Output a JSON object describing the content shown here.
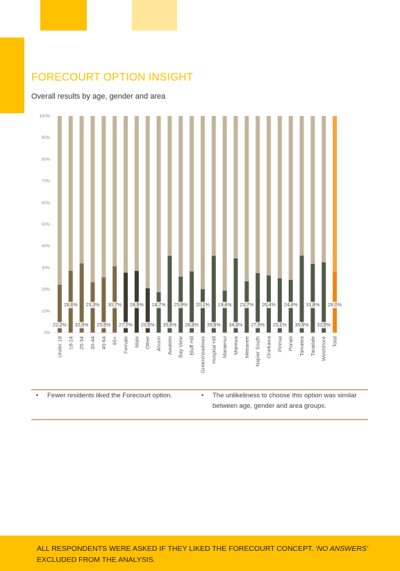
{
  "header": {
    "title": "FORECOURT OPTION INSIGHT",
    "subtitle": "Overall results by age, gender and area"
  },
  "colors": {
    "brand_yellow": "#FFC000",
    "light_yellow": "#FFE699",
    "no_segment": "#C3B59C",
    "age_yes": "#7F6A46",
    "gender_yes": "#3E3A2C",
    "area_yes": "#4F5B46",
    "total_no": "#F6A640",
    "total_yes": "#EE8516"
  },
  "chart_data": {
    "type": "bar",
    "stacked": true,
    "percent": true,
    "ylim": [
      0,
      100
    ],
    "yticks": [
      "0%",
      "10%",
      "20%",
      "30%",
      "40%",
      "50%",
      "60%",
      "70%",
      "80%",
      "90%",
      "100%"
    ],
    "categories": [
      "Under 18",
      "18-24",
      "25-34",
      "35-44",
      "45-64",
      "65+",
      "Female",
      "Male",
      "Other",
      "Ahuriri",
      "Awatoto",
      "Bay View",
      "Bluff Hill",
      "Greenmeadows",
      "Hospital Hill",
      "Maraenui",
      "Marewa",
      "Meeanee",
      "Napier South",
      "Onekawa",
      "Pirimai",
      "Poraiti",
      "Tamatea",
      "Taradale",
      "Westshore",
      "Total"
    ],
    "groups": [
      "age",
      "age",
      "age",
      "age",
      "age",
      "age",
      "gender",
      "gender",
      "gender",
      "area",
      "area",
      "area",
      "area",
      "area",
      "area",
      "area",
      "area",
      "area",
      "area",
      "area",
      "area",
      "area",
      "area",
      "area",
      "area",
      "total"
    ],
    "values": [
      22.2,
      28.6,
      32.0,
      23.3,
      25.5,
      30.7,
      27.7,
      28.5,
      20.5,
      18.7,
      35.5,
      25.9,
      28.3,
      20.1,
      35.5,
      19.4,
      34.3,
      23.7,
      27.5,
      26.4,
      25.1,
      24.4,
      35.6,
      31.8,
      32.5,
      28.0
    ],
    "labels": [
      "22.2%",
      "28.6%",
      "32.0%",
      "23.3%",
      "25.5%",
      "30.7%",
      "27.7%",
      "28.5%",
      "20.5%",
      "18.7%",
      "35.5%",
      "25.9%",
      "28.3%",
      "20.1%",
      "35.5%",
      "19.4%",
      "34.3%",
      "23.7%",
      "27.5%",
      "26.4%",
      "25.1%",
      "24.4%",
      "35.6%",
      "31.8%",
      "32.5%",
      "28.0%"
    ],
    "legend": "none",
    "grid": false
  },
  "notes": {
    "bullet_1": "Fewer residents liked the Forecourt option.",
    "bullet_2": "The unlikeliness to choose this option was similar between age, gender and area groups."
  },
  "footer": {
    "text_main": "ALL RESPONDENTS WERE ASKED IF THEY LIKED THE FORECOURT CONCEPT. ",
    "text_italic": "‘NO ANSWERS’",
    "text_end": " EXCLUDED FROM THE ANALYSIS."
  }
}
